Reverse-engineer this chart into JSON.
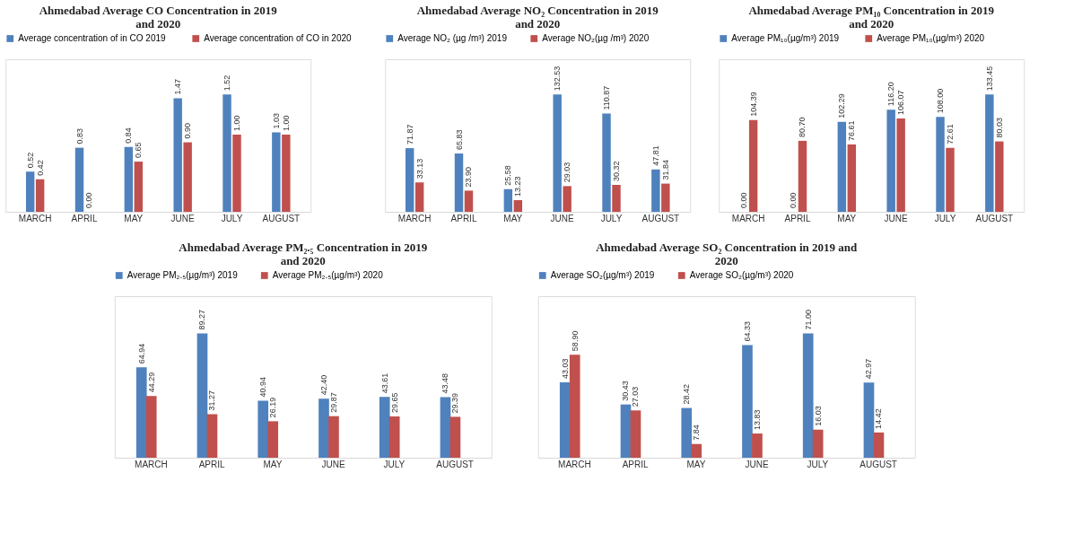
{
  "chart_data": [
    {
      "type": "bar",
      "title": "Ahmedabad Average CO Concentration in 2019 and 2020",
      "categories": [
        "MARCH",
        "APRIL",
        "MAY",
        "JUNE",
        "JULY",
        "AUGUST"
      ],
      "series": [
        {
          "name": "Average concentration of in CO  2019",
          "color": "#4f81bd",
          "values": [
            0.52,
            0.83,
            0.84,
            1.47,
            1.52,
            1.03
          ],
          "value_labels": [
            "0.52",
            "0.83",
            "0.84",
            "1.47",
            "1.52",
            "1.03"
          ]
        },
        {
          "name": "Average concentration of  CO in  2020",
          "color": "#c0504d",
          "values": [
            0.42,
            0.0,
            0.65,
            0.9,
            1.0,
            1.0
          ],
          "value_labels": [
            "0.42",
            "0.00",
            "0.65",
            "0.90",
            "1.00",
            "1.00"
          ]
        }
      ],
      "legend": "top"
    },
    {
      "type": "bar",
      "title": "Ahmedabad Average NO₂ Concentration in 2019 and 2020",
      "categories": [
        "MARCH",
        "APRIL",
        "MAY",
        "JUNE",
        "JULY",
        "AUGUST"
      ],
      "series": [
        {
          "name": "Average NO₂ (µg /m³) 2019",
          "color": "#4f81bd",
          "values": [
            71.87,
            65.83,
            25.58,
            132.53,
            110.87,
            47.81
          ],
          "value_labels": [
            "71.87",
            "65.83",
            "25.58",
            "132.53",
            "110.87",
            "47.81"
          ]
        },
        {
          "name": "Average NO₂(µg /m³) 2020",
          "color": "#c0504d",
          "values": [
            33.13,
            23.9,
            13.23,
            29.03,
            30.32,
            31.84
          ],
          "value_labels": [
            "33.13",
            "23.90",
            "13.23",
            "29.03",
            "30.32",
            "31.84"
          ]
        }
      ],
      "legend": "top"
    },
    {
      "type": "bar",
      "title": "Ahmedabad Average PM₁₀ Concentration in 2019 and 2020",
      "categories": [
        "MARCH",
        "APRIL",
        "MAY",
        "JUNE",
        "JULY",
        "AUGUST"
      ],
      "series": [
        {
          "name": "Average PM₁₀(µg/m³)  2019",
          "color": "#4f81bd",
          "values": [
            0.0,
            0.0,
            102.29,
            116.2,
            108.0,
            133.45
          ],
          "value_labels": [
            "0.00",
            "0.00",
            "102.29",
            "116.20",
            "108.00",
            "133.45"
          ]
        },
        {
          "name": "Average PM₁₀(µg/m³)  2020",
          "color": "#c0504d",
          "values": [
            104.39,
            80.7,
            76.61,
            106.07,
            72.61,
            80.03
          ],
          "value_labels": [
            "104.39",
            "80.70",
            "76.61",
            "106.07",
            "72.61",
            "80.03"
          ]
        }
      ],
      "legend": "top"
    },
    {
      "type": "bar",
      "title": "Ahmedabad Average PM₂.₅ Concentration in 2019 and 2020",
      "categories": [
        "MARCH",
        "APRIL",
        "MAY",
        "JUNE",
        "JULY",
        "AUGUST"
      ],
      "series": [
        {
          "name": "Average PM₂.₅(µg/m³) 2019",
          "color": "#4f81bd",
          "values": [
            64.94,
            89.27,
            40.94,
            42.4,
            43.61,
            43.48
          ],
          "value_labels": [
            "64.94",
            "89.27",
            "40.94",
            "42.40",
            "43.61",
            "43.48"
          ]
        },
        {
          "name": "Average PM₂.₅(µg/m³) 2020",
          "color": "#c0504d",
          "values": [
            44.29,
            31.27,
            26.19,
            29.87,
            29.65,
            29.39
          ],
          "value_labels": [
            "44.29",
            "31.27",
            "26.19",
            "29.87",
            "29.65",
            "29.39"
          ]
        }
      ],
      "legend": "top"
    },
    {
      "type": "bar",
      "title": "Ahmedabad Average SO₂ Concentration in 2019 and 2020",
      "categories": [
        "MARCH",
        "APRIL",
        "MAY",
        "JUNE",
        "JULY",
        "AUGUST"
      ],
      "series": [
        {
          "name": "Average SO₂(µg/m³) 2019",
          "color": "#4f81bd",
          "values": [
            43.03,
            30.43,
            28.42,
            64.33,
            71.0,
            42.97
          ],
          "value_labels": [
            "43.03",
            "30.43",
            "28.42",
            "64.33",
            "71.00",
            "42.97"
          ]
        },
        {
          "name": "Average SO₂(µg/m³) 2020",
          "color": "#c0504d",
          "values": [
            58.9,
            27.03,
            7.84,
            13.83,
            16.03,
            14.42
          ],
          "value_labels": [
            "58.90",
            "27.03",
            "7.84",
            "13.83",
            "16.03",
            "14.42"
          ]
        }
      ],
      "legend": "top"
    }
  ]
}
